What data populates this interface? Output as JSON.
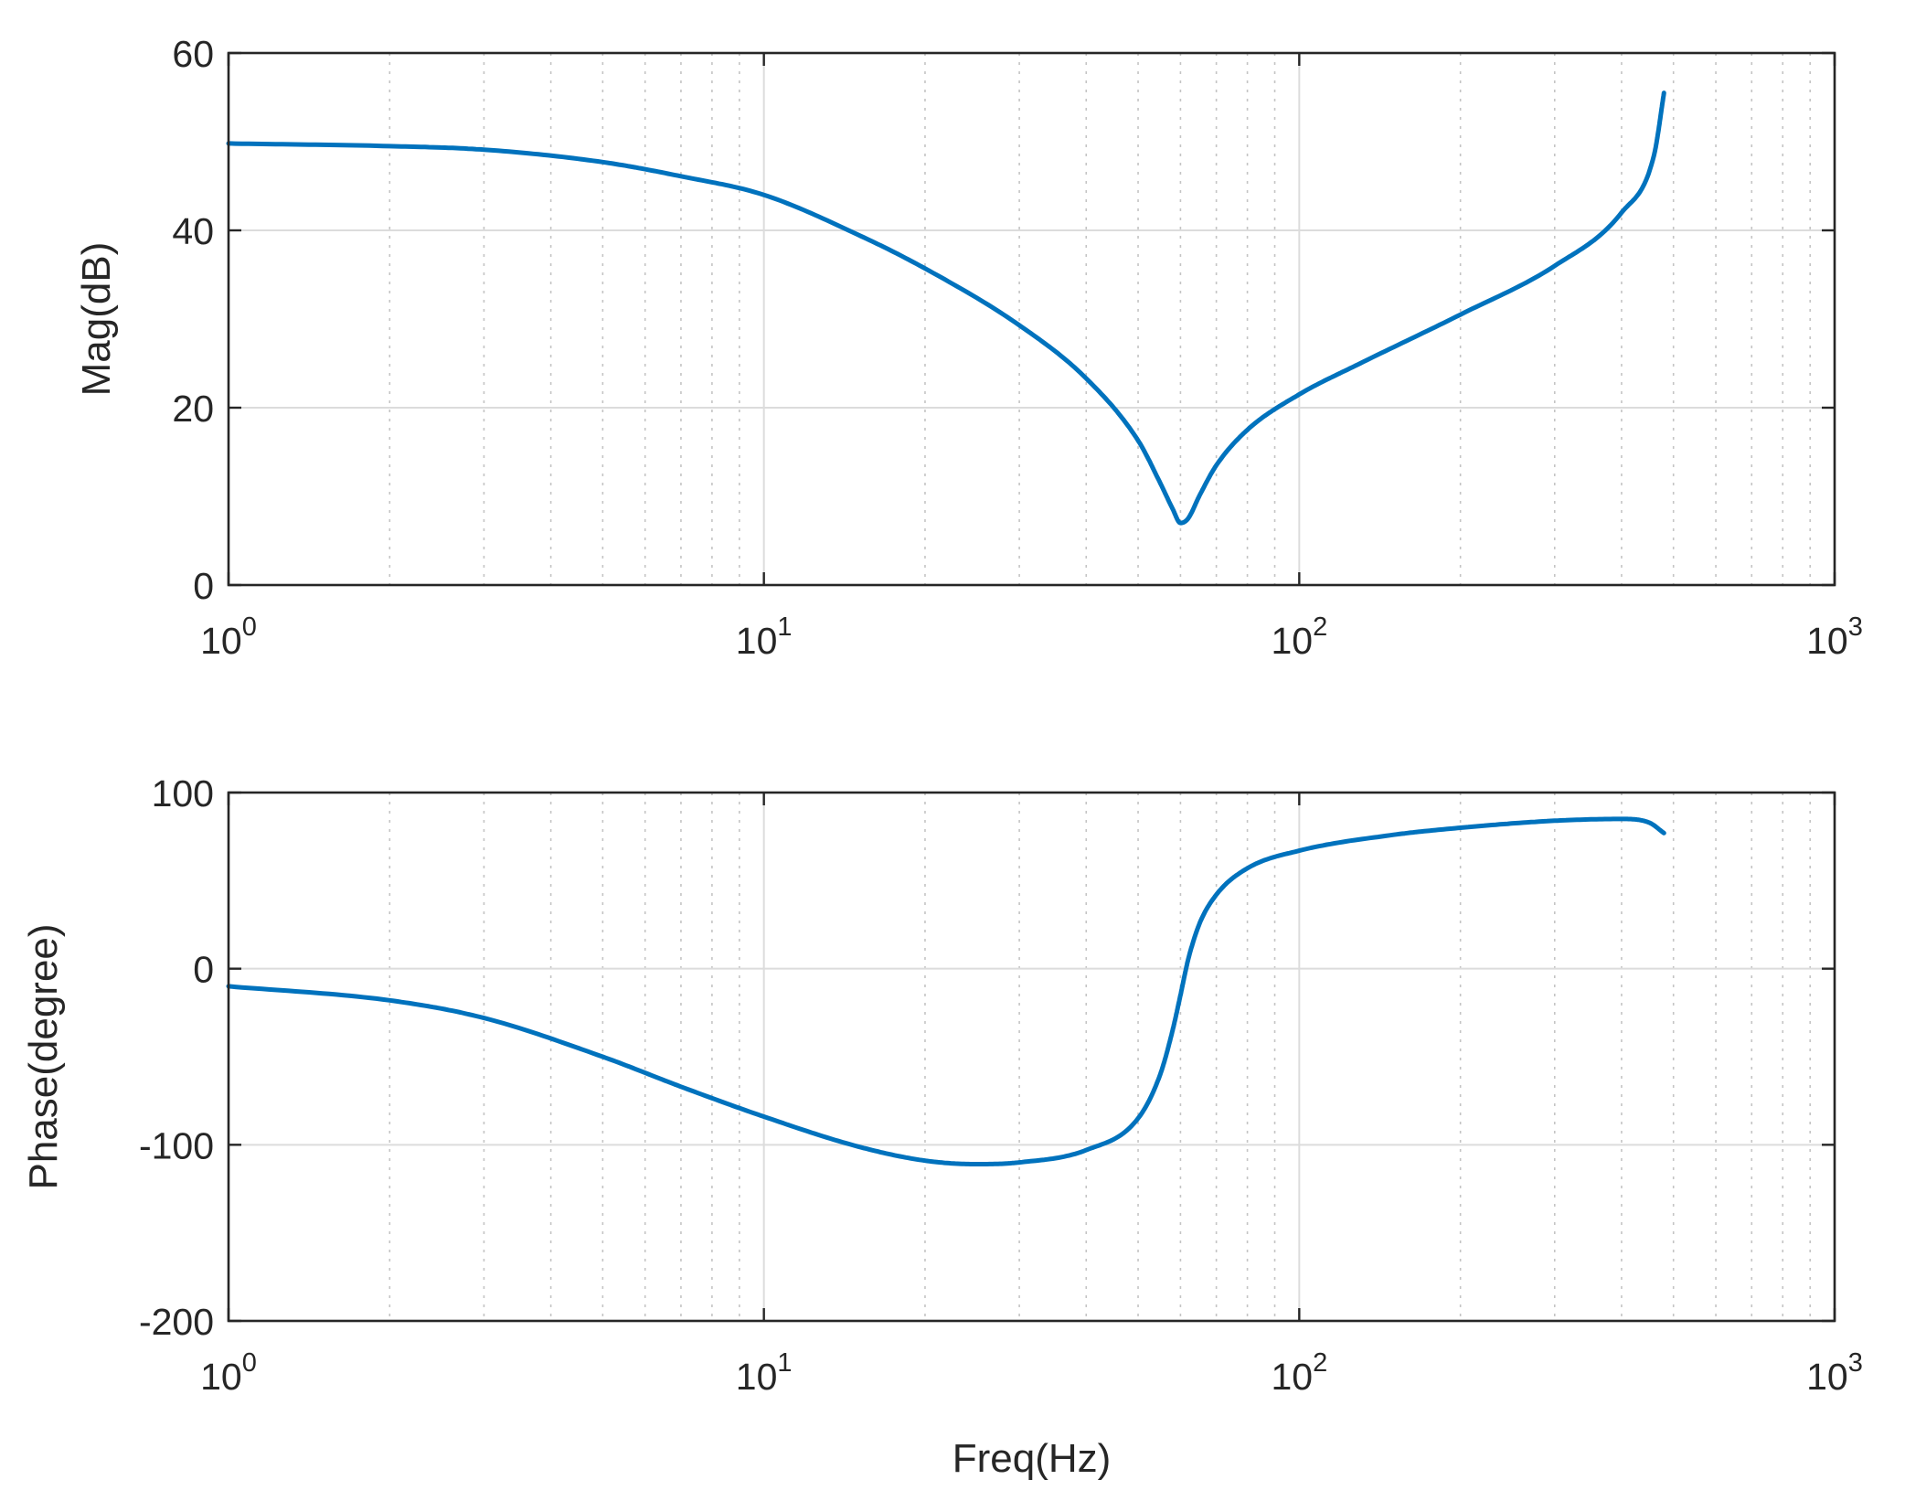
{
  "chart_data": [
    {
      "type": "line",
      "id": "magnitude",
      "xlabel": "",
      "ylabel": "Mag(dB)",
      "xscale": "log",
      "xlim": [
        1,
        1000
      ],
      "ylim": [
        0,
        60
      ],
      "grid": true,
      "x_ticks": [
        {
          "base": "10",
          "exp": "0"
        },
        {
          "base": "10",
          "exp": "1"
        },
        {
          "base": "10",
          "exp": "2"
        },
        {
          "base": "10",
          "exp": "3"
        }
      ],
      "y_ticks": [
        "0",
        "20",
        "40",
        "60"
      ],
      "series": [
        {
          "color": "#0072bd",
          "x": [
            1,
            2,
            3,
            5,
            7,
            10,
            15,
            20,
            30,
            40,
            50,
            55,
            58,
            60,
            62,
            65,
            70,
            80,
            100,
            130,
            200,
            300,
            400,
            460,
            480
          ],
          "y": [
            49.8,
            49.5,
            49.1,
            47.7,
            46.1,
            44.0,
            39.5,
            35.7,
            29.3,
            23.3,
            16.3,
            11.5,
            8.6,
            7.0,
            7.5,
            10.0,
            13.5,
            17.5,
            21.5,
            25.0,
            30.5,
            36.0,
            42.0,
            48.5,
            55.5
          ]
        }
      ]
    },
    {
      "type": "line",
      "id": "phase",
      "xlabel": "Freq(Hz)",
      "ylabel": "Phase(degree)",
      "xscale": "log",
      "xlim": [
        1,
        1000
      ],
      "ylim": [
        -200,
        100
      ],
      "grid": true,
      "x_ticks": [
        {
          "base": "10",
          "exp": "0"
        },
        {
          "base": "10",
          "exp": "1"
        },
        {
          "base": "10",
          "exp": "2"
        },
        {
          "base": "10",
          "exp": "3"
        }
      ],
      "y_ticks": [
        "-200",
        "-100",
        "0",
        "100"
      ],
      "series": [
        {
          "color": "#0072bd",
          "x": [
            1,
            2,
            3,
            5,
            7,
            10,
            15,
            20,
            25,
            30,
            40,
            50,
            55,
            58,
            60,
            62,
            65,
            70,
            80,
            100,
            150,
            200,
            300,
            400,
            450,
            480
          ],
          "y": [
            -10,
            -18,
            -28,
            -50,
            -67,
            -84,
            -101,
            -109,
            -111,
            -110,
            -103,
            -85,
            -60,
            -35,
            -15,
            5,
            25,
            42,
            57,
            67,
            76,
            80,
            84,
            85,
            83,
            77
          ]
        }
      ]
    }
  ]
}
